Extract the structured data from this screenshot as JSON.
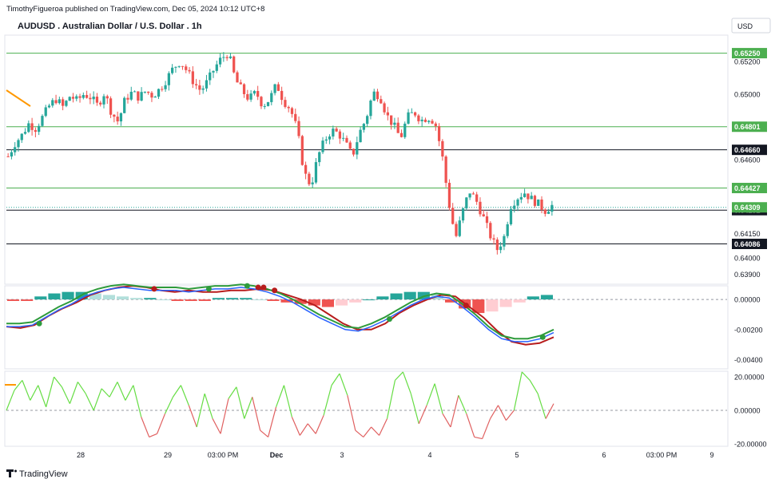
{
  "header": {
    "published": "TimothyFigueroa published on TradingView.com, Dec 05, 2024 10:12 UTC+8",
    "symbol": "AUDUSD . Australian Dollar / U.S. Dollar . 1h",
    "currency": "USD"
  },
  "footer": {
    "brand": "TradingView"
  },
  "colors": {
    "up": "#26a69a",
    "down": "#ef5350",
    "level_green": "#4caf50",
    "level_black": "#131722",
    "macd_fast": "#2e9b3c",
    "macd_slow": "#2962ff",
    "signal_line": "#b71c1c",
    "osc_up": "#66dd44",
    "osc_down": "#e06060",
    "hist_up_strong": "#26a69a",
    "hist_up_weak": "#b2dfdb",
    "hist_down_strong": "#ef5350",
    "hist_down_weak": "#ffcdd2"
  },
  "chart_data": [
    {
      "type": "candlestick",
      "title": "AUDUSD . Australian Dollar / U.S. Dollar . 1h",
      "ylim": [
        0.6384,
        0.6536
      ],
      "y_ticks": [
        "0.65200",
        "0.65000",
        "0.64600",
        "0.64150",
        "0.64000",
        "0.63900"
      ],
      "x_ticks": [
        "28",
        "29",
        "03:00 PM",
        "Dec",
        "3",
        "4",
        "5",
        "6",
        "03:00 PM",
        "9"
      ],
      "horizontal_levels": [
        {
          "value": 0.6525,
          "label": "0.65250",
          "color": "green"
        },
        {
          "value": 0.64801,
          "label": "0.64801",
          "color": "green"
        },
        {
          "value": 0.6466,
          "label": "0.64660",
          "color": "black"
        },
        {
          "value": 0.64427,
          "label": "0.64427",
          "color": "green"
        },
        {
          "value": 0.64292,
          "label": "0.64292",
          "color": "black"
        },
        {
          "value": 0.64086,
          "label": "0.64086",
          "color": "black"
        }
      ],
      "last_price": {
        "value": 0.64309,
        "label": "0.64309"
      },
      "close_path": [
        0.6462,
        0.647,
        0.6475,
        0.6482,
        0.6479,
        0.6486,
        0.6493,
        0.6497,
        0.6492,
        0.6499,
        0.6496,
        0.65,
        0.6498,
        0.6493,
        0.6501,
        0.6489,
        0.6483,
        0.6497,
        0.6501,
        0.6498,
        0.6502,
        0.6499,
        0.6503,
        0.6509,
        0.6516,
        0.652,
        0.6514,
        0.6507,
        0.6502,
        0.6508,
        0.6516,
        0.6522,
        0.6525,
        0.6509,
        0.6502,
        0.6497,
        0.6501,
        0.6493,
        0.6497,
        0.6506,
        0.6496,
        0.6491,
        0.6478,
        0.6452,
        0.6444,
        0.6462,
        0.6472,
        0.6478,
        0.6476,
        0.647,
        0.6462,
        0.6476,
        0.6485,
        0.6501,
        0.6499,
        0.6487,
        0.6481,
        0.6473,
        0.6486,
        0.6489,
        0.6484,
        0.6486,
        0.6483,
        0.6464,
        0.6434,
        0.6412,
        0.6428,
        0.6441,
        0.6435,
        0.6425,
        0.6414,
        0.6405,
        0.6412,
        0.6432,
        0.6437,
        0.644,
        0.6436,
        0.6433,
        0.6429,
        0.6432
      ]
    },
    {
      "type": "line",
      "title": "MACD",
      "ylim": [
        -0.0045,
        0.0008
      ],
      "y_ticks": [
        "0.00000",
        "-0.00200",
        "-0.00400"
      ],
      "series": [],
      "signal_path": [
        -0.0018,
        -0.0019,
        -0.0017,
        -0.0011,
        -0.0006,
        -0.0002,
        0.0003,
        0.0006,
        0.0008,
        0.0009,
        0.0008,
        0.0006,
        0.0005,
        0.0006,
        0.0005,
        0.0005,
        0.0006,
        0.0006,
        0.0007,
        0.0006,
        0.0003,
        0.0,
        -0.0004,
        -0.001,
        -0.0016,
        -0.002,
        -0.002,
        -0.0016,
        -0.0009,
        -0.0004,
        0.0,
        0.0003,
        0.0002,
        -0.0005,
        -0.0012,
        -0.0021,
        -0.0028,
        -0.003,
        -0.0029,
        -0.0025
      ],
      "fast_path": [
        -0.0018,
        -0.0018,
        -0.0017,
        -0.0012,
        -0.0007,
        -0.0003,
        0.0002,
        0.0005,
        0.0007,
        0.0008,
        0.0007,
        0.0006,
        0.0006,
        0.0006,
        0.0005,
        0.0006,
        0.0007,
        0.0007,
        0.0008,
        0.0007,
        0.0005,
        0.0002,
        -0.0002,
        -0.0007,
        -0.0012,
        -0.0016,
        -0.002,
        -0.0021,
        -0.0018,
        -0.0014,
        -0.0009,
        -0.0004,
        0.0,
        0.0002,
        0.0001,
        -0.0005,
        -0.0012,
        -0.002,
        -0.0026,
        -0.0028,
        -0.0028,
        -0.0026,
        -0.0022
      ],
      "histogram": [
        -0.0001,
        -0.0001,
        0.0002,
        0.0004,
        0.0005,
        0.0005,
        0.0004,
        0.0003,
        0.0002,
        0.0001,
        0.0001,
        0.0,
        -0.0001,
        -0.0001,
        -0.0001,
        0.0001,
        0.0001,
        0.0001,
        0.0,
        -0.0001,
        -0.0002,
        -0.0003,
        -0.0004,
        -0.0005,
        -0.0004,
        -0.0002,
        0.0,
        0.0002,
        0.0004,
        0.0005,
        0.0005,
        0.0004,
        -0.0002,
        -0.0006,
        -0.0009,
        -0.0008,
        -0.0005,
        -0.0002,
        0.0002,
        0.0003
      ]
    },
    {
      "type": "line",
      "title": "Oscillator",
      "ylim": [
        -22,
        22
      ],
      "y_ticks": [
        "20.00000",
        "0.00000",
        "-20.00000"
      ],
      "path": [
        0,
        12,
        18,
        6,
        15,
        2,
        20,
        14,
        4,
        17,
        10,
        0,
        13,
        8,
        17,
        6,
        15,
        -4,
        -16,
        -14,
        -2,
        8,
        15,
        3,
        -10,
        10,
        -5,
        -14,
        7,
        14,
        -5,
        8,
        -12,
        -16,
        2,
        15,
        -4,
        -15,
        -8,
        -14,
        -3,
        15,
        22,
        9,
        -12,
        -16,
        -10,
        -15,
        -5,
        18,
        23,
        10,
        -8,
        3,
        16,
        -2,
        -10,
        9,
        -2,
        -16,
        -17,
        -5,
        3,
        -6,
        0,
        23,
        18,
        10,
        -5,
        4
      ]
    }
  ]
}
